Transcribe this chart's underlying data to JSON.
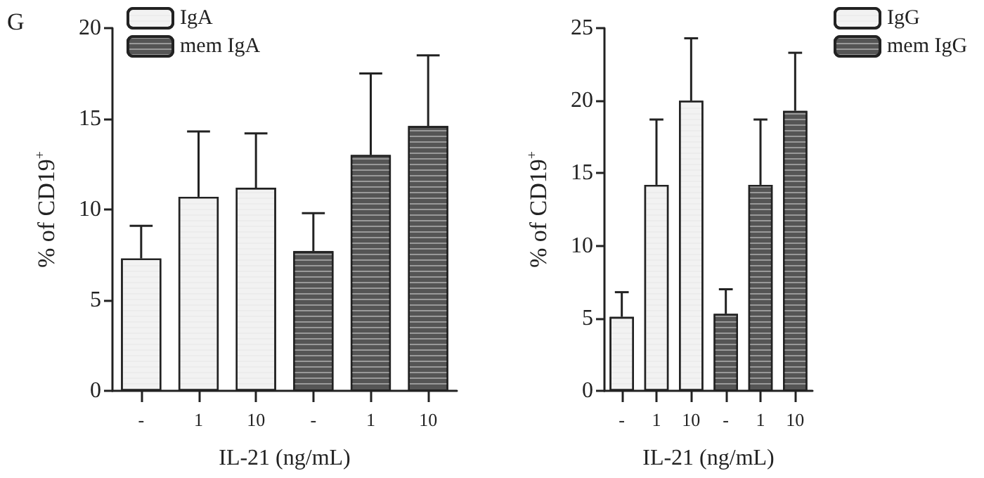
{
  "chart_data": [
    {
      "type": "bar",
      "title": "G",
      "xlabel": "IL-21 (ng/mL)",
      "ylabel": "% of CD19$^{+}$",
      "categories": [
        "-",
        "1",
        "10",
        "-",
        "1",
        "10"
      ],
      "series": [
        {
          "name": "IgA",
          "color": "#f2f2f2",
          "values": [
            7.3,
            10.7,
            11.2,
            null,
            null,
            null
          ],
          "errors": [
            [
              7.3,
              9.1
            ],
            [
              10.7,
              14.3
            ],
            [
              11.2,
              14.2
            ],
            null,
            null,
            null
          ]
        },
        {
          "name": "mem IgA",
          "color": "#555555",
          "values": [
            null,
            null,
            null,
            7.7,
            13.0,
            14.6
          ],
          "errors": [
            null,
            null,
            null,
            [
              7.7,
              9.8
            ],
            [
              13.0,
              17.5
            ],
            [
              14.6,
              18.5
            ]
          ]
        }
      ],
      "ylim": [
        0,
        20
      ],
      "yticks": [
        0,
        5,
        10,
        15,
        20
      ],
      "grid": false,
      "legend": "top left"
    },
    {
      "type": "bar",
      "xlabel": "IL-21 (ng/mL)",
      "ylabel": "% of CD19$^{+}$",
      "categories": [
        "-",
        "1",
        "10",
        "-",
        "1",
        "10"
      ],
      "series": [
        {
          "name": "IgG",
          "color": "#f2f2f2",
          "values": [
            5.1,
            14.2,
            20.0,
            null,
            null,
            null
          ],
          "errors": [
            [
              5.1,
              6.8
            ],
            [
              14.2,
              18.7
            ],
            [
              20.0,
              24.3
            ],
            null,
            null,
            null
          ]
        },
        {
          "name": "mem IgG",
          "color": "#555555",
          "values": [
            null,
            null,
            null,
            5.3,
            14.2,
            19.3
          ],
          "errors": [
            null,
            null,
            null,
            [
              5.3,
              7.0
            ],
            [
              14.2,
              18.7
            ],
            [
              19.3,
              23.3
            ]
          ]
        }
      ],
      "ylim": [
        0,
        25
      ],
      "yticks": [
        0,
        5,
        10,
        15,
        20,
        25
      ],
      "grid": false,
      "legend": "top right"
    }
  ]
}
